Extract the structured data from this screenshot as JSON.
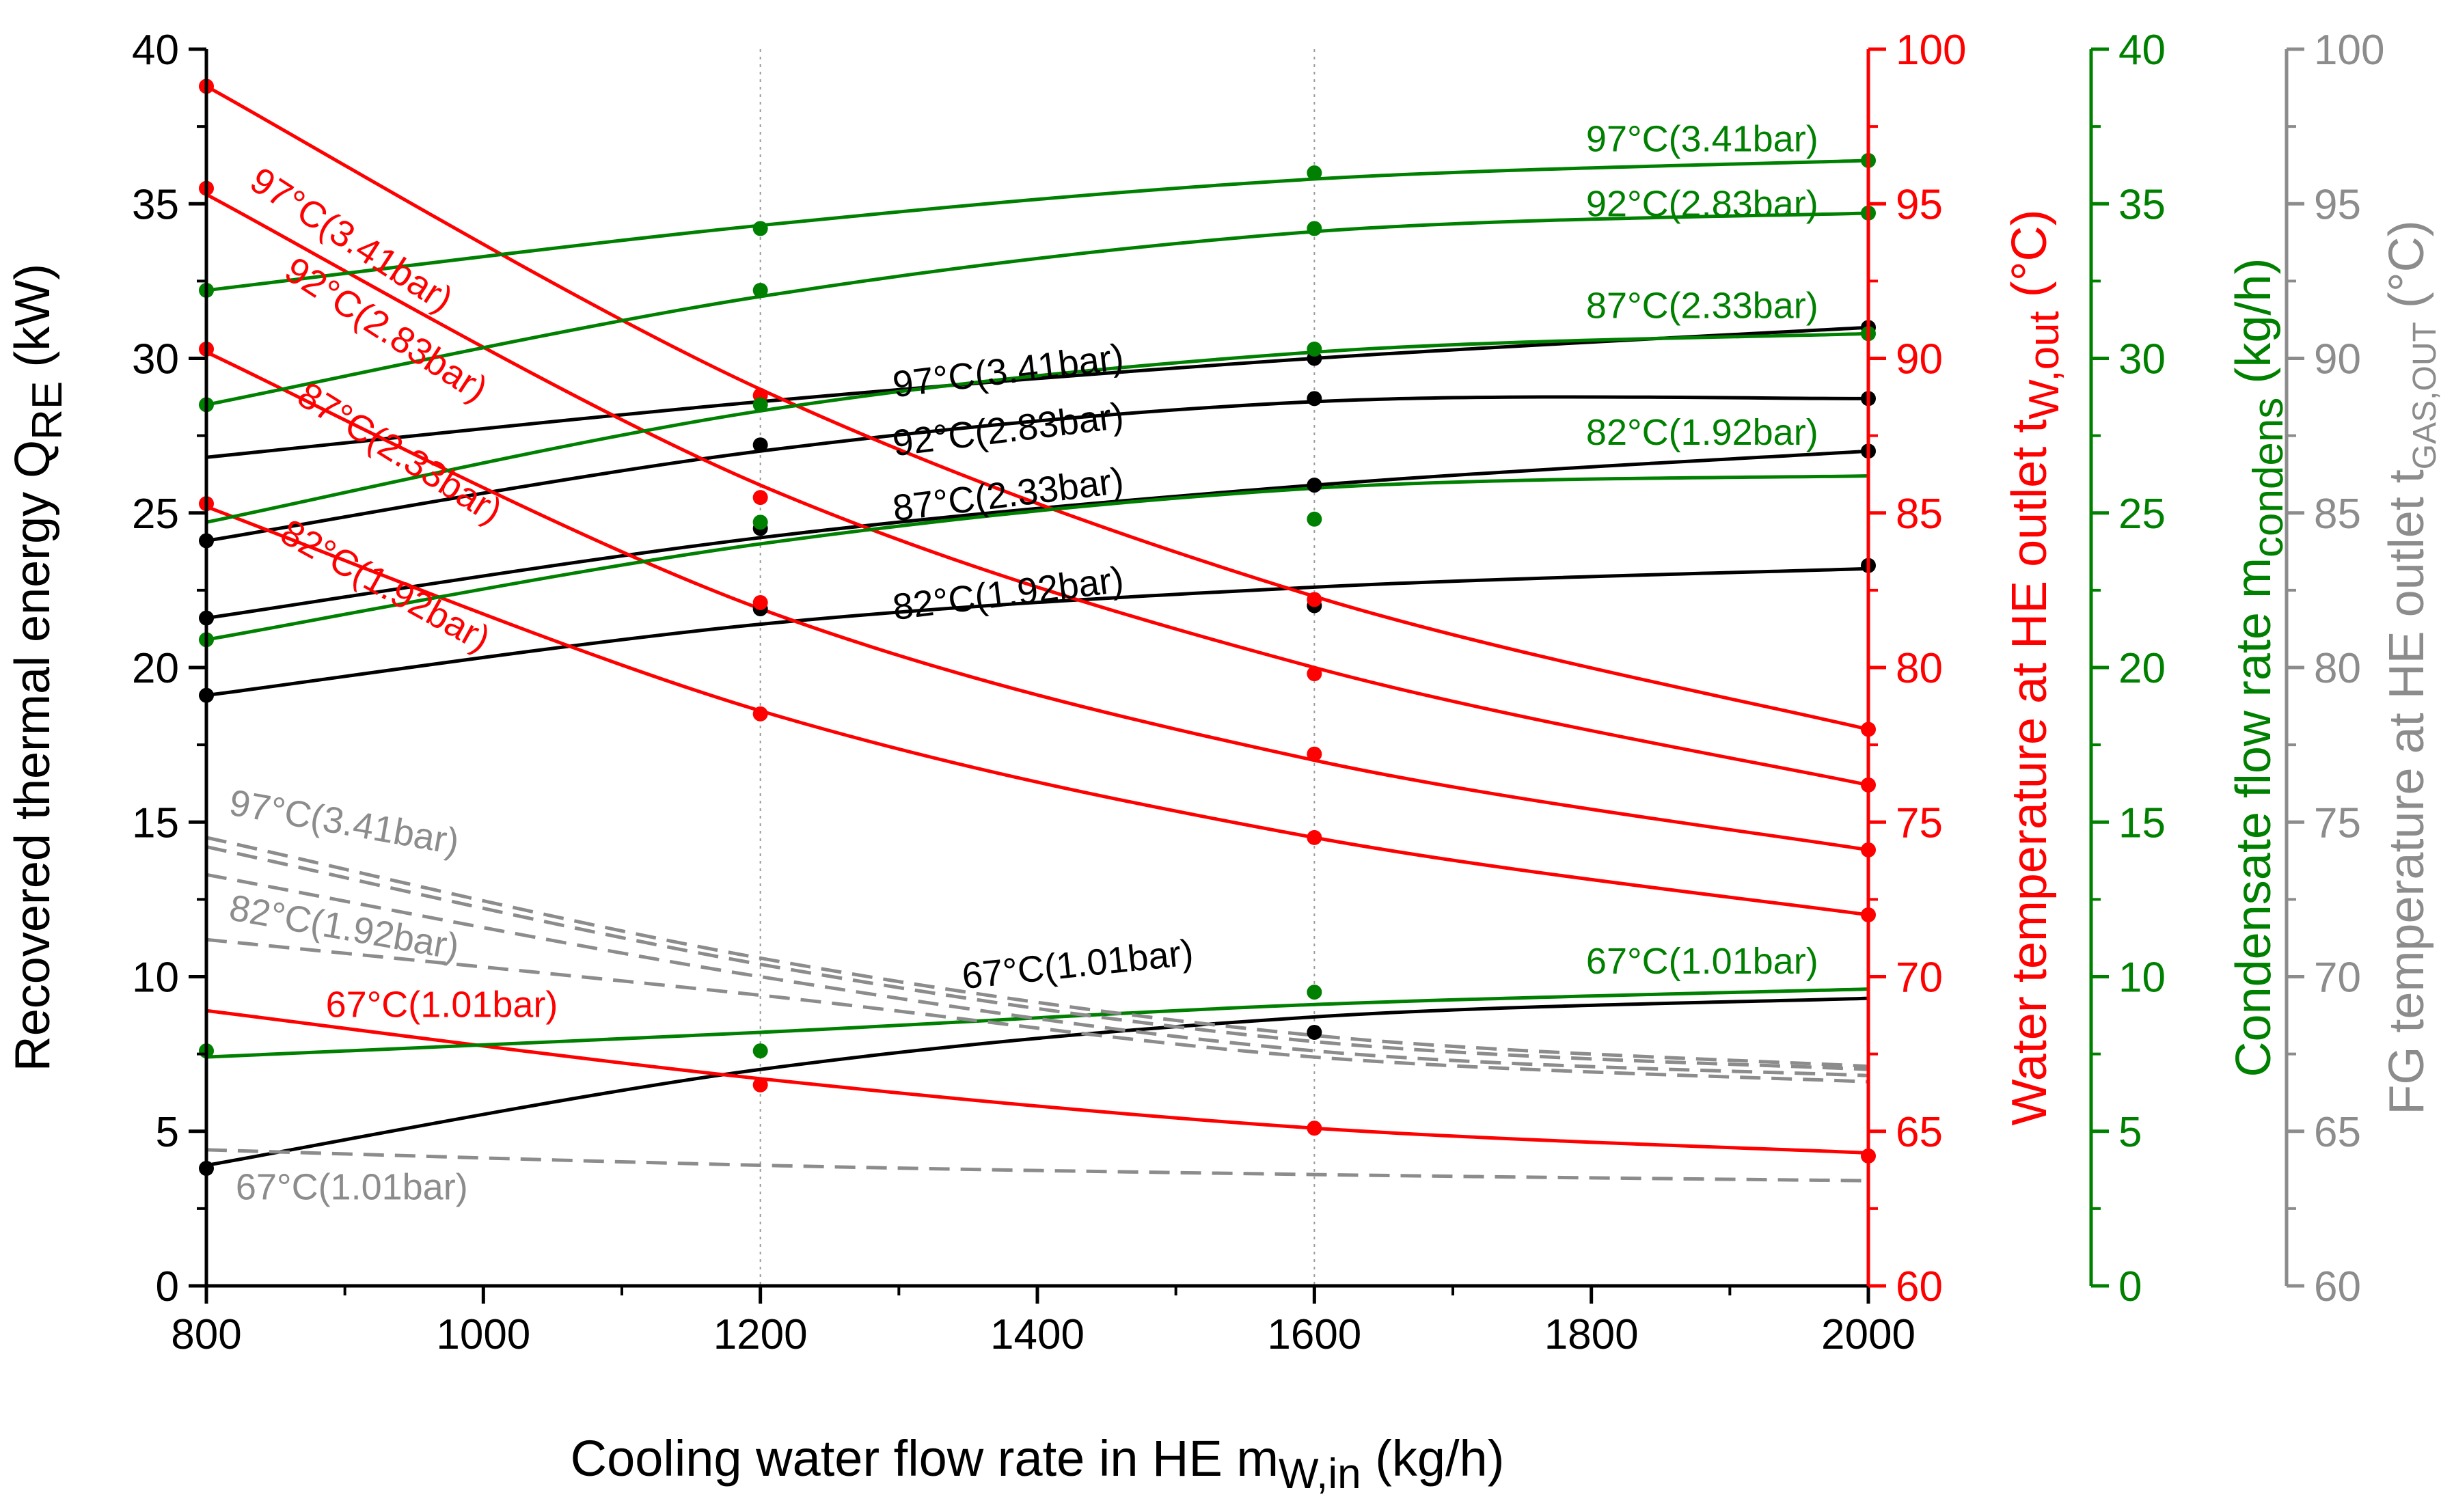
{
  "chart_data": {
    "type": "line",
    "title": "",
    "x": [
      800,
      1200,
      1600,
      2000
    ],
    "xlim": [
      800,
      2000
    ],
    "xticks": [
      800,
      1000,
      1200,
      1400,
      1600,
      1800,
      2000
    ],
    "xlabel": {
      "main": "Cooling water flow rate in HE m",
      "sub": "W,in",
      "unit": " (kg/h)"
    },
    "grid": "vertical dotted at 1200, 1600, 2000",
    "axes": [
      {
        "id": "q",
        "side": "left",
        "color": "#000000",
        "min": 0,
        "max": 40,
        "ticks": [
          0,
          5,
          10,
          15,
          20,
          25,
          30,
          35,
          40
        ],
        "label": {
          "main": "Recovered thermal energy Q",
          "sub": "RE",
          "unit": " (kW)"
        }
      },
      {
        "id": "tw",
        "side": "right",
        "color": "#ff0000",
        "min": 60,
        "max": 100,
        "ticks": [
          60,
          65,
          70,
          75,
          80,
          85,
          90,
          95,
          100
        ],
        "label": {
          "main": "Water temperature at HE outlet t",
          "sub": "W,out",
          "unit": " (°C)"
        }
      },
      {
        "id": "m",
        "side": "right",
        "color": "#008000",
        "min": 0,
        "max": 40,
        "ticks": [
          0,
          5,
          10,
          15,
          20,
          25,
          30,
          35,
          40
        ],
        "label": {
          "main": "Condensate flow rate m",
          "sub": "condens",
          "unit": " (kg/h)"
        }
      },
      {
        "id": "tg",
        "side": "right",
        "color": "#8c8c8c",
        "min": 60,
        "max": 100,
        "ticks": [
          60,
          65,
          70,
          75,
          80,
          85,
          90,
          95,
          100
        ],
        "label": {
          "main": "FG temperature at HE outlet t",
          "sub": "GAS,OUT",
          "unit": " (°C)"
        }
      }
    ],
    "series": [
      {
        "name": "97°C(3.41bar)",
        "axis": "q",
        "color": "#000000",
        "dash": false,
        "points": [
          null,
          null,
          30.0,
          31.0
        ],
        "fit": [
          26.8,
          28.6,
          30.0,
          31.0
        ]
      },
      {
        "name": "92°C(2.83bar)",
        "axis": "q",
        "color": "#000000",
        "dash": false,
        "points": [
          24.1,
          27.2,
          28.7,
          28.7
        ],
        "fit": [
          24.1,
          27.0,
          28.6,
          28.7
        ]
      },
      {
        "name": "87°C(2.33bar)",
        "axis": "q",
        "color": "#000000",
        "dash": false,
        "points": [
          21.6,
          24.5,
          25.9,
          27.0
        ],
        "fit": [
          21.6,
          24.2,
          25.9,
          27.0
        ]
      },
      {
        "name": "82°C(1.92bar)",
        "axis": "q",
        "color": "#000000",
        "dash": false,
        "points": [
          19.1,
          21.9,
          22.0,
          23.3
        ],
        "fit": [
          19.1,
          21.4,
          22.6,
          23.2
        ]
      },
      {
        "name": "67°C(1.01bar)",
        "axis": "q",
        "color": "#000000",
        "dash": false,
        "points": [
          3.8,
          null,
          8.2,
          null
        ],
        "fit": [
          3.9,
          7.0,
          8.7,
          9.3
        ]
      },
      {
        "name": "97°C(3.41bar)",
        "axis": "tw",
        "color": "#ff0000",
        "dash": false,
        "points": [
          98.8,
          88.8,
          82.2,
          78.0
        ],
        "fit": [
          98.8,
          89.0,
          82.3,
          78.0
        ]
      },
      {
        "name": "92°C(2.83bar)",
        "axis": "tw",
        "color": "#ff0000",
        "dash": false,
        "points": [
          95.5,
          85.5,
          79.8,
          76.2
        ],
        "fit": [
          95.3,
          85.9,
          80.0,
          76.2
        ]
      },
      {
        "name": "87°C(2.33bar)",
        "axis": "tw",
        "color": "#ff0000",
        "dash": false,
        "points": [
          90.3,
          82.1,
          77.2,
          74.1
        ],
        "fit": [
          90.2,
          81.9,
          77.0,
          74.1
        ]
      },
      {
        "name": "82°C(1.92bar)",
        "axis": "tw",
        "color": "#ff0000",
        "dash": false,
        "points": [
          85.3,
          78.5,
          74.5,
          72.0
        ],
        "fit": [
          85.2,
          78.6,
          74.5,
          72.0
        ]
      },
      {
        "name": "67°C(1.01bar)",
        "axis": "tw",
        "color": "#ff0000",
        "dash": false,
        "points": [
          null,
          66.5,
          65.1,
          64.2
        ],
        "fit": [
          68.9,
          66.7,
          65.1,
          64.3
        ]
      },
      {
        "name": "97°C(3.41bar)",
        "axis": "m",
        "color": "#008000",
        "dash": false,
        "points": [
          null,
          34.2,
          36.0,
          36.4
        ],
        "fit": [
          32.2,
          34.3,
          35.8,
          36.4
        ]
      },
      {
        "name": "92°C(2.83bar)",
        "axis": "m",
        "color": "#008000",
        "dash": false,
        "points": [
          32.2,
          32.2,
          34.2,
          34.7
        ],
        "fit": [
          28.5,
          32.0,
          34.1,
          34.7
        ]
      },
      {
        "name": "87°C(2.33bar)",
        "axis": "m",
        "color": "#008000",
        "dash": false,
        "points": [
          28.5,
          28.5,
          30.3,
          30.8
        ],
        "fit": [
          24.7,
          28.3,
          30.2,
          30.8
        ]
      },
      {
        "name": "82°C(1.92bar)",
        "axis": "m",
        "color": "#008000",
        "dash": false,
        "points": [
          20.9,
          24.7,
          24.8,
          null
        ],
        "fit": [
          20.9,
          24.0,
          25.8,
          26.2
        ]
      },
      {
        "name": "67°C(1.01bar)",
        "axis": "m",
        "color": "#008000",
        "dash": false,
        "points": [
          7.6,
          7.6,
          9.5,
          null
        ],
        "fit": [
          7.4,
          8.2,
          9.1,
          9.6
        ]
      },
      {
        "name": "97°C(3.41bar)",
        "axis": "tg",
        "color": "#8c8c8c",
        "dash": true,
        "points": [],
        "fit": [
          74.5,
          70.6,
          68.1,
          67.1
        ]
      },
      {
        "name": "92°C(2.83bar)",
        "axis": "tg",
        "color": "#8c8c8c",
        "dash": true,
        "points": [],
        "fit": [
          74.2,
          70.4,
          67.9,
          67.0
        ]
      },
      {
        "name": "87°C(2.33bar)",
        "axis": "tg",
        "color": "#8c8c8c",
        "dash": true,
        "points": [],
        "fit": [
          73.3,
          70.0,
          67.6,
          66.8
        ]
      },
      {
        "name": "82°C(1.92bar)",
        "axis": "tg",
        "color": "#8c8c8c",
        "dash": true,
        "points": [],
        "fit": [
          71.2,
          69.4,
          67.4,
          66.6
        ]
      },
      {
        "name": "67°C(1.01bar)",
        "axis": "tg",
        "color": "#8c8c8c",
        "dash": true,
        "points": [],
        "fit": [
          64.4,
          63.9,
          63.6,
          63.4
        ]
      }
    ],
    "annotations": [
      {
        "text": "97°C(3.41bar)",
        "color": "#ff0000",
        "x": 900,
        "y": 93.5,
        "axis": "tw",
        "rot": 33
      },
      {
        "text": "92°C(2.83bar)",
        "color": "#ff0000",
        "x": 925,
        "y": 90.6,
        "axis": "tw",
        "rot": 33
      },
      {
        "text": "87°C(2.33bar)",
        "color": "#ff0000",
        "x": 935,
        "y": 86.6,
        "axis": "tw",
        "rot": 32
      },
      {
        "text": "82°C(1.92bar)",
        "color": "#ff0000",
        "x": 925,
        "y": 82.3,
        "axis": "tw",
        "rot": 29
      },
      {
        "text": "67°C(1.01bar)",
        "color": "#ff0000",
        "x": 970,
        "y": 68.7,
        "axis": "tw",
        "rot": 0
      },
      {
        "text": "97°C(3.41bar)",
        "color": "#000000",
        "x": 1380,
        "y": 29.2,
        "axis": "q",
        "rot": -7
      },
      {
        "text": "92°C(2.83bar)",
        "color": "#000000",
        "x": 1380,
        "y": 27.3,
        "axis": "q",
        "rot": -7
      },
      {
        "text": "87°C(2.33bar)",
        "color": "#000000",
        "x": 1380,
        "y": 25.2,
        "axis": "q",
        "rot": -7
      },
      {
        "text": "82°C(1.92bar)",
        "color": "#000000",
        "x": 1380,
        "y": 22.0,
        "axis": "q",
        "rot": -7
      },
      {
        "text": "67°C(1.01bar)",
        "color": "#000000",
        "x": 1430,
        "y": 10.0,
        "axis": "q",
        "rot": -6
      },
      {
        "text": "97°C(3.41bar)",
        "color": "#008000",
        "x": 1880,
        "y": 36.7,
        "axis": "m",
        "rot": 0
      },
      {
        "text": "92°C(2.83bar)",
        "color": "#008000",
        "x": 1880,
        "y": 34.6,
        "axis": "m",
        "rot": 0
      },
      {
        "text": "87°C(2.33bar)",
        "color": "#008000",
        "x": 1880,
        "y": 31.3,
        "axis": "m",
        "rot": 0
      },
      {
        "text": "82°C(1.92bar)",
        "color": "#008000",
        "x": 1880,
        "y": 27.2,
        "axis": "m",
        "rot": 0
      },
      {
        "text": "67°C(1.01bar)",
        "color": "#008000",
        "x": 1880,
        "y": 10.1,
        "axis": "m",
        "rot": 0
      },
      {
        "text": "97°C(3.41bar)",
        "color": "#8c8c8c",
        "x": 898,
        "y": 74.6,
        "axis": "tg",
        "rot": 10
      },
      {
        "text": "82°C(1.92bar)",
        "color": "#8c8c8c",
        "x": 898,
        "y": 71.2,
        "axis": "tg",
        "rot": 10
      },
      {
        "text": "67°C(1.01bar)",
        "color": "#8c8c8c",
        "x": 905,
        "y": 62.8,
        "axis": "tg",
        "rot": 0
      }
    ]
  }
}
